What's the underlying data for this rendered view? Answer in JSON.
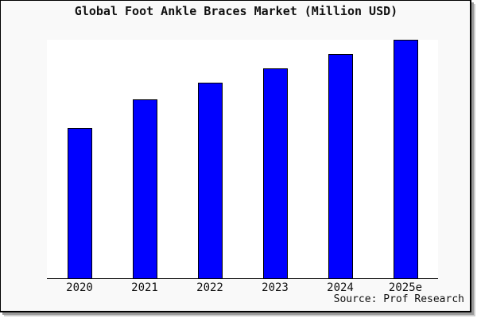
{
  "chart_data": {
    "type": "bar",
    "title": "Global Foot Ankle Braces Market (Million USD)",
    "categories": [
      "2020",
      "2021",
      "2022",
      "2023",
      "2024",
      "2025e"
    ],
    "values": [
      63,
      75,
      82,
      88,
      94,
      100
    ],
    "value_note": "y-axis has no tick labels or gridlines; values estimated from bar heights relative to 2025e = 100",
    "xlabel": "",
    "ylabel": "",
    "ylim": [
      0,
      100
    ],
    "grid": false,
    "legend": false,
    "bar_color": "#0000ff",
    "bar_border_color": "#000000"
  },
  "source_note": "Source: Prof Research",
  "colors": {
    "canvas_background": "#f9f9f9",
    "plot_background": "#ffffff",
    "frame_border": "#000000",
    "shadow": "#999999",
    "text": "#111111"
  }
}
